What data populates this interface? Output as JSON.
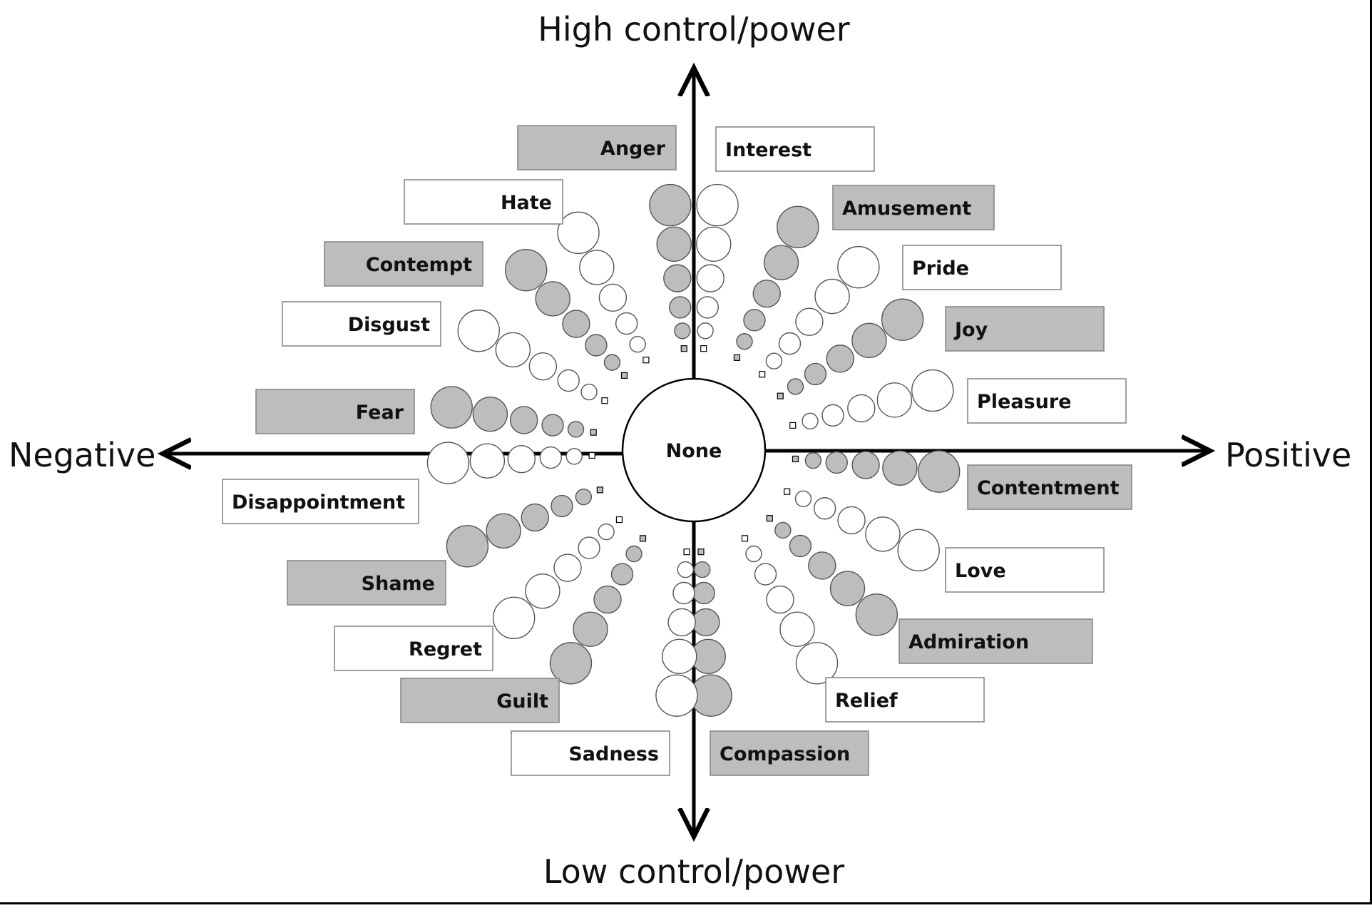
{
  "axes": {
    "top": "High control/power",
    "bottom": "Low control/power",
    "left": "Negative",
    "right": "Positive"
  },
  "center": {
    "label": "None"
  },
  "colors": {
    "filled": "#bdbdbd",
    "hollow": "#ffffff",
    "stroke": "#555555",
    "ink": "#000000"
  },
  "emotions": [
    {
      "label": "Anger",
      "fill": "gray"
    },
    {
      "label": "Interest",
      "fill": "white"
    },
    {
      "label": "Amusement",
      "fill": "gray"
    },
    {
      "label": "Pride",
      "fill": "white"
    },
    {
      "label": "Joy",
      "fill": "gray"
    },
    {
      "label": "Pleasure",
      "fill": "white"
    },
    {
      "label": "Contentment",
      "fill": "gray"
    },
    {
      "label": "Love",
      "fill": "white"
    },
    {
      "label": "Admiration",
      "fill": "gray"
    },
    {
      "label": "Relief",
      "fill": "white"
    },
    {
      "label": "Compassion",
      "fill": "gray"
    },
    {
      "label": "Sadness",
      "fill": "white"
    },
    {
      "label": "Guilt",
      "fill": "gray"
    },
    {
      "label": "Regret",
      "fill": "white"
    },
    {
      "label": "Shame",
      "fill": "gray"
    },
    {
      "label": "Disappointment",
      "fill": "white"
    },
    {
      "label": "Fear",
      "fill": "gray"
    },
    {
      "label": "Disgust",
      "fill": "white"
    },
    {
      "label": "Contempt",
      "fill": "gray"
    },
    {
      "label": "Hate",
      "fill": "white"
    }
  ]
}
